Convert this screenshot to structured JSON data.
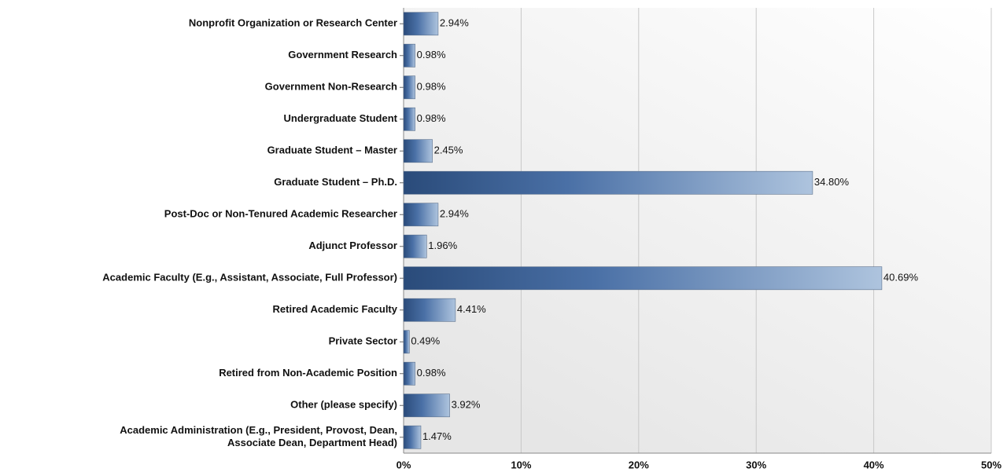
{
  "chart_data": {
    "type": "barh",
    "categories": [
      "Nonprofit Organization or Research Center",
      "Government Research",
      "Government Non-Research",
      "Undergraduate Student",
      "Graduate Student – Master",
      "Graduate Student – Ph.D.",
      "Post-Doc or Non-Tenured Academic Researcher",
      "Adjunct Professor",
      "Academic Faculty (E.g., Assistant, Associate, Full Professor)",
      "Retired Academic Faculty",
      "Private Sector",
      "Retired from Non-Academic Position",
      "Other (please specify)",
      "Academic Administration (E.g., President, Provost, Dean,\nAssociate Dean, Department Head)"
    ],
    "values": [
      2.94,
      0.98,
      0.98,
      0.98,
      2.45,
      34.8,
      2.94,
      1.96,
      40.69,
      4.41,
      0.49,
      0.98,
      3.92,
      1.47
    ],
    "value_labels": [
      "2.94%",
      "0.98%",
      "0.98%",
      "0.98%",
      "2.45%",
      "34.80%",
      "2.94%",
      "1.96%",
      "40.69%",
      "4.41%",
      "0.49%",
      "0.98%",
      "3.92%",
      "1.47%"
    ],
    "color": "#2f5486",
    "xlim": [
      0,
      50
    ],
    "xticks": [
      {
        "value": 0,
        "label": "0%"
      },
      {
        "value": 10,
        "label": "10%"
      },
      {
        "value": 20,
        "label": "20%"
      },
      {
        "value": 30,
        "label": "30%"
      },
      {
        "value": 40,
        "label": "40%"
      },
      {
        "value": 50,
        "label": "50%"
      }
    ],
    "grid": true
  }
}
